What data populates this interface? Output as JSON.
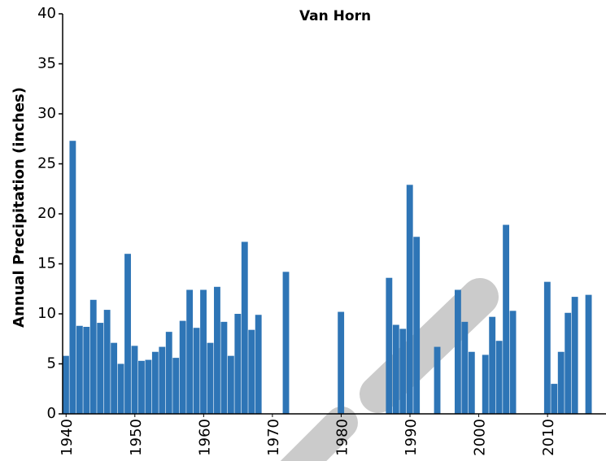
{
  "chart_data": {
    "type": "bar",
    "title": "Van Horn",
    "y_label": "Annual Precipitation (inches)",
    "x": [
      1940,
      1941,
      1942,
      1943,
      1944,
      1945,
      1946,
      1947,
      1948,
      1949,
      1950,
      1951,
      1952,
      1953,
      1954,
      1955,
      1956,
      1957,
      1958,
      1959,
      1960,
      1961,
      1962,
      1963,
      1964,
      1965,
      1966,
      1967,
      1968,
      1972,
      1980,
      1987,
      1988,
      1989,
      1990,
      1991,
      1994,
      1997,
      1998,
      1999,
      2001,
      2002,
      2003,
      2004,
      2005,
      2010,
      2011,
      2012,
      2013,
      2014,
      2016
    ],
    "values": [
      5.8,
      27.3,
      8.8,
      8.7,
      11.4,
      9.1,
      10.4,
      7.1,
      5.0,
      16.0,
      6.8,
      5.3,
      5.4,
      6.2,
      6.7,
      8.2,
      5.6,
      9.3,
      12.4,
      8.6,
      12.4,
      7.1,
      12.7,
      9.2,
      5.8,
      10.0,
      17.2,
      8.4,
      9.9,
      14.2,
      10.2,
      13.6,
      8.9,
      8.5,
      22.9,
      17.7,
      6.7,
      12.4,
      9.2,
      6.2,
      5.9,
      9.7,
      7.3,
      18.9,
      10.3,
      13.2,
      3.0,
      6.2,
      10.1,
      11.7,
      11.9
    ],
    "color": "#2e75b6",
    "xlim": [
      1939.5,
      2018.5
    ],
    "xticks": [
      1940,
      1950,
      1960,
      1970,
      1980,
      1990,
      2000,
      2010
    ],
    "ylim": [
      0,
      40
    ],
    "yticks": [
      0,
      5,
      10,
      15,
      20,
      25,
      30,
      35,
      40
    ],
    "grid": false
  }
}
